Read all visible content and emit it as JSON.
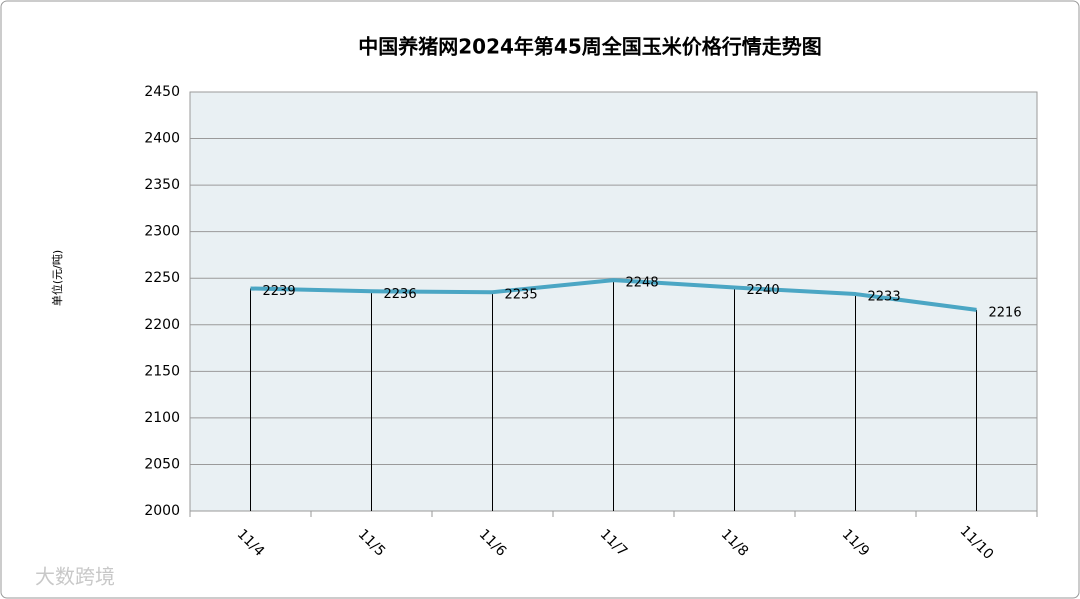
{
  "chart_data": {
    "type": "line",
    "title": "中国养猪网2024年第45周全国玉米价格行情走势图",
    "y_label": "单位(元/吨)",
    "categories": [
      "11/4",
      "11/5",
      "11/6",
      "11/7",
      "11/8",
      "11/9",
      "11/10"
    ],
    "values": [
      2239,
      2236,
      2235,
      2248,
      2240,
      2233,
      2216
    ],
    "color": "#4ba6c4",
    "ylim": [
      2000,
      2450
    ],
    "yticks": [
      2000,
      2050,
      2100,
      2150,
      2200,
      2250,
      2300,
      2350,
      2400,
      2450
    ],
    "grid": true,
    "drop_lines": true
  },
  "watermark": "大数跨境"
}
